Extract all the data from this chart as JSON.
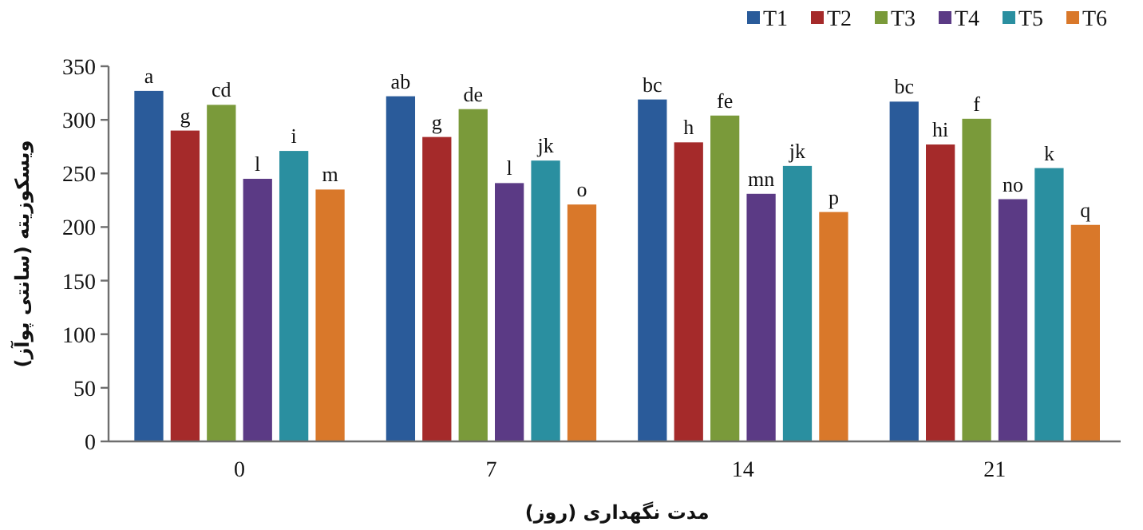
{
  "chart_data": {
    "type": "bar",
    "xlabel": "مدت نگهداری (روز)",
    "ylabel": "ویسکوزیته (سانتی پوآز)",
    "categories": [
      "0",
      "7",
      "14",
      "21"
    ],
    "ylim": [
      0,
      350
    ],
    "yticks": [
      0,
      50,
      100,
      150,
      200,
      250,
      300,
      350
    ],
    "legend": "top right",
    "grid": false,
    "series": [
      {
        "name": "T1",
        "color": "#2a5b9a",
        "values": [
          327,
          322,
          319,
          317
        ],
        "value_labels": [
          "a",
          "ab",
          "bc",
          "bc"
        ]
      },
      {
        "name": "T2",
        "color": "#a52a2a",
        "values": [
          290,
          284,
          279,
          277
        ],
        "value_labels": [
          "g",
          "g",
          "h",
          "hi"
        ]
      },
      {
        "name": "T3",
        "color": "#7a9a3a",
        "values": [
          314,
          310,
          304,
          301
        ],
        "value_labels": [
          "cd",
          "de",
          "fe",
          "f"
        ]
      },
      {
        "name": "T4",
        "color": "#5b3a85",
        "values": [
          245,
          241,
          231,
          226
        ],
        "value_labels": [
          "l",
          "l",
          "mn",
          "no"
        ]
      },
      {
        "name": "T5",
        "color": "#2a8fa0",
        "values": [
          271,
          262,
          257,
          255
        ],
        "value_labels": [
          "i",
          "jk",
          "jk",
          "k"
        ]
      },
      {
        "name": "T6",
        "color": "#d9782a",
        "values": [
          235,
          221,
          214,
          202
        ],
        "value_labels": [
          "m",
          "o",
          "p",
          "q"
        ]
      }
    ]
  }
}
